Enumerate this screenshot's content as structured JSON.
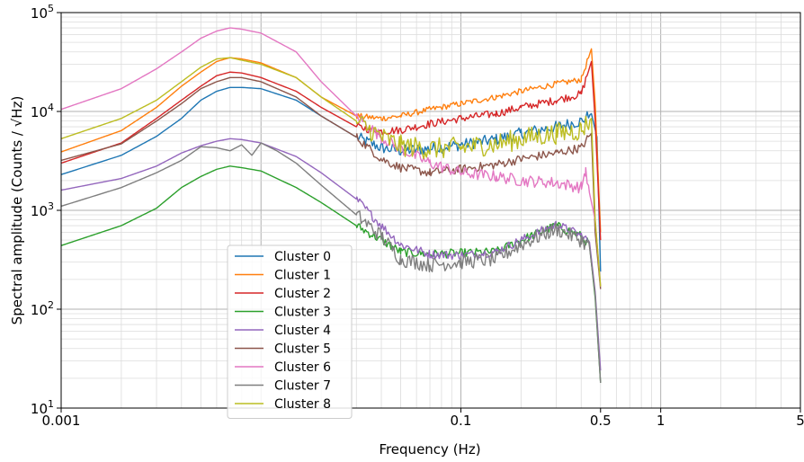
{
  "chart_data": {
    "type": "line",
    "title": "",
    "xlabel": "Frequency (Hz)",
    "ylabel": "Spectral amplitude (Counts / √Hz)",
    "xscale": "log",
    "yscale": "log",
    "xlim": [
      0.001,
      5
    ],
    "ylim": [
      10,
      100000
    ],
    "grid": true,
    "legend_position": "lower-left",
    "x_ticks": [
      {
        "value": 0.001,
        "label": "0.001"
      },
      {
        "value": 0.1,
        "label": "0.1"
      },
      {
        "value": 0.5,
        "label": "0.5"
      },
      {
        "value": 1,
        "label": "1"
      },
      {
        "value": 5,
        "label": "5"
      }
    ],
    "y_ticks": [
      {
        "value": 10,
        "label": "10",
        "exp": "1"
      },
      {
        "value": 100,
        "label": "10",
        "exp": "2"
      },
      {
        "value": 1000,
        "label": "10",
        "exp": "3"
      },
      {
        "value": 10000,
        "label": "10",
        "exp": "4"
      },
      {
        "value": 100000,
        "label": "10",
        "exp": "5"
      }
    ],
    "series": [
      {
        "name": "Cluster 0",
        "color": "#1f77b4",
        "noise": 0.12,
        "points": [
          [
            0.001,
            2300
          ],
          [
            0.002,
            3600
          ],
          [
            0.003,
            5600
          ],
          [
            0.004,
            8500
          ],
          [
            0.005,
            13000
          ],
          [
            0.006,
            16000
          ],
          [
            0.007,
            17500
          ],
          [
            0.008,
            17500
          ],
          [
            0.01,
            17000
          ],
          [
            0.015,
            13000
          ],
          [
            0.02,
            9000
          ],
          [
            0.03,
            5500
          ],
          [
            0.04,
            4300
          ],
          [
            0.05,
            4000
          ],
          [
            0.07,
            4200
          ],
          [
            0.1,
            4600
          ],
          [
            0.15,
            5200
          ],
          [
            0.2,
            6000
          ],
          [
            0.3,
            7000
          ],
          [
            0.4,
            8000
          ],
          [
            0.45,
            9500
          ],
          [
            0.48,
            5500
          ],
          [
            0.5,
            240
          ]
        ]
      },
      {
        "name": "Cluster 1",
        "color": "#ff7f0e",
        "noise": 0.06,
        "points": [
          [
            0.001,
            3900
          ],
          [
            0.002,
            6400
          ],
          [
            0.003,
            11000
          ],
          [
            0.004,
            18000
          ],
          [
            0.005,
            25000
          ],
          [
            0.006,
            32000
          ],
          [
            0.007,
            35000
          ],
          [
            0.008,
            34000
          ],
          [
            0.01,
            31000
          ],
          [
            0.015,
            22000
          ],
          [
            0.02,
            14000
          ],
          [
            0.03,
            9000
          ],
          [
            0.04,
            8500
          ],
          [
            0.05,
            9000
          ],
          [
            0.07,
            10500
          ],
          [
            0.1,
            12000
          ],
          [
            0.15,
            14000
          ],
          [
            0.2,
            16000
          ],
          [
            0.3,
            19000
          ],
          [
            0.4,
            21000
          ],
          [
            0.45,
            43000
          ],
          [
            0.47,
            12000
          ],
          [
            0.5,
            600
          ]
        ]
      },
      {
        "name": "Cluster 2",
        "color": "#d62728",
        "noise": 0.08,
        "points": [
          [
            0.001,
            3000
          ],
          [
            0.002,
            4800
          ],
          [
            0.003,
            8500
          ],
          [
            0.004,
            13000
          ],
          [
            0.005,
            18000
          ],
          [
            0.006,
            23000
          ],
          [
            0.007,
            25000
          ],
          [
            0.008,
            24500
          ],
          [
            0.01,
            22000
          ],
          [
            0.015,
            16000
          ],
          [
            0.02,
            11000
          ],
          [
            0.03,
            7000
          ],
          [
            0.04,
            6300
          ],
          [
            0.05,
            6500
          ],
          [
            0.07,
            7500
          ],
          [
            0.1,
            8500
          ],
          [
            0.15,
            9500
          ],
          [
            0.2,
            11000
          ],
          [
            0.3,
            13000
          ],
          [
            0.4,
            15000
          ],
          [
            0.45,
            32000
          ],
          [
            0.47,
            8000
          ],
          [
            0.5,
            500
          ]
        ]
      },
      {
        "name": "Cluster 3",
        "color": "#2ca02c",
        "noise": 0.09,
        "points": [
          [
            0.001,
            440
          ],
          [
            0.002,
            700
          ],
          [
            0.003,
            1050
          ],
          [
            0.004,
            1700
          ],
          [
            0.005,
            2200
          ],
          [
            0.006,
            2600
          ],
          [
            0.007,
            2800
          ],
          [
            0.008,
            2700
          ],
          [
            0.01,
            2500
          ],
          [
            0.015,
            1700
          ],
          [
            0.02,
            1200
          ],
          [
            0.03,
            700
          ],
          [
            0.04,
            500
          ],
          [
            0.05,
            380
          ],
          [
            0.07,
            360
          ],
          [
            0.1,
            370
          ],
          [
            0.15,
            380
          ],
          [
            0.2,
            500
          ],
          [
            0.3,
            700
          ],
          [
            0.4,
            550
          ],
          [
            0.44,
            450
          ],
          [
            0.47,
            130
          ],
          [
            0.5,
            18
          ]
        ]
      },
      {
        "name": "Cluster 4",
        "color": "#9467bd",
        "noise": 0.09,
        "points": [
          [
            0.001,
            1600
          ],
          [
            0.002,
            2100
          ],
          [
            0.003,
            2800
          ],
          [
            0.004,
            3800
          ],
          [
            0.005,
            4500
          ],
          [
            0.006,
            5000
          ],
          [
            0.007,
            5300
          ],
          [
            0.008,
            5200
          ],
          [
            0.01,
            4800
          ],
          [
            0.015,
            3500
          ],
          [
            0.02,
            2400
          ],
          [
            0.03,
            1300
          ],
          [
            0.04,
            700
          ],
          [
            0.05,
            450
          ],
          [
            0.07,
            360
          ],
          [
            0.1,
            350
          ],
          [
            0.15,
            380
          ],
          [
            0.2,
            500
          ],
          [
            0.3,
            720
          ],
          [
            0.4,
            560
          ],
          [
            0.44,
            480
          ],
          [
            0.47,
            150
          ],
          [
            0.5,
            24
          ]
        ]
      },
      {
        "name": "Cluster 5",
        "color": "#8c564b",
        "noise": 0.09,
        "points": [
          [
            0.001,
            3200
          ],
          [
            0.002,
            4700
          ],
          [
            0.003,
            8000
          ],
          [
            0.004,
            12000
          ],
          [
            0.005,
            17000
          ],
          [
            0.006,
            20000
          ],
          [
            0.007,
            22000
          ],
          [
            0.008,
            22000
          ],
          [
            0.01,
            20000
          ],
          [
            0.015,
            14000
          ],
          [
            0.02,
            9000
          ],
          [
            0.03,
            5500
          ],
          [
            0.04,
            3300
          ],
          [
            0.05,
            2700
          ],
          [
            0.07,
            2400
          ],
          [
            0.1,
            2600
          ],
          [
            0.15,
            2900
          ],
          [
            0.2,
            3300
          ],
          [
            0.3,
            3800
          ],
          [
            0.4,
            4300
          ],
          [
            0.45,
            6000
          ],
          [
            0.47,
            600
          ],
          [
            0.5,
            160
          ]
        ]
      },
      {
        "name": "Cluster 6",
        "color": "#e377c2",
        "noise": 0.12,
        "points": [
          [
            0.001,
            10500
          ],
          [
            0.002,
            17000
          ],
          [
            0.003,
            27000
          ],
          [
            0.004,
            40000
          ],
          [
            0.005,
            55000
          ],
          [
            0.006,
            65000
          ],
          [
            0.007,
            70000
          ],
          [
            0.008,
            68000
          ],
          [
            0.01,
            62000
          ],
          [
            0.015,
            40000
          ],
          [
            0.02,
            20000
          ],
          [
            0.03,
            9000
          ],
          [
            0.04,
            5500
          ],
          [
            0.05,
            4200
          ],
          [
            0.07,
            3000
          ],
          [
            0.1,
            2400
          ],
          [
            0.15,
            2200
          ],
          [
            0.2,
            2000
          ],
          [
            0.3,
            1900
          ],
          [
            0.4,
            1700
          ],
          [
            0.42,
            2500
          ],
          [
            0.44,
            1500
          ],
          [
            0.47,
            800
          ],
          [
            0.5,
            170
          ]
        ]
      },
      {
        "name": "Cluster 7",
        "color": "#7f7f7f",
        "noise": 0.15,
        "points": [
          [
            0.001,
            1100
          ],
          [
            0.002,
            1700
          ],
          [
            0.003,
            2400
          ],
          [
            0.004,
            3200
          ],
          [
            0.005,
            4400
          ],
          [
            0.006,
            4300
          ],
          [
            0.007,
            4000
          ],
          [
            0.008,
            4600
          ],
          [
            0.009,
            3600
          ],
          [
            0.01,
            4800
          ],
          [
            0.012,
            4000
          ],
          [
            0.015,
            3000
          ],
          [
            0.02,
            1800
          ],
          [
            0.03,
            900
          ],
          [
            0.04,
            550
          ],
          [
            0.05,
            320
          ],
          [
            0.07,
            280
          ],
          [
            0.1,
            300
          ],
          [
            0.15,
            320
          ],
          [
            0.2,
            450
          ],
          [
            0.3,
            650
          ],
          [
            0.4,
            500
          ],
          [
            0.44,
            430
          ],
          [
            0.47,
            140
          ],
          [
            0.5,
            18
          ]
        ]
      },
      {
        "name": "Cluster 8",
        "color": "#bcbd22",
        "noise": 0.22,
        "points": [
          [
            0.001,
            5300
          ],
          [
            0.002,
            8500
          ],
          [
            0.003,
            13000
          ],
          [
            0.004,
            20000
          ],
          [
            0.005,
            28000
          ],
          [
            0.006,
            34000
          ],
          [
            0.007,
            35000
          ],
          [
            0.008,
            33000
          ],
          [
            0.01,
            30000
          ],
          [
            0.015,
            22000
          ],
          [
            0.02,
            14000
          ],
          [
            0.03,
            8000
          ],
          [
            0.04,
            5500
          ],
          [
            0.05,
            4500
          ],
          [
            0.07,
            4200
          ],
          [
            0.1,
            4300
          ],
          [
            0.15,
            4700
          ],
          [
            0.2,
            5300
          ],
          [
            0.3,
            6000
          ],
          [
            0.4,
            6500
          ],
          [
            0.45,
            8500
          ],
          [
            0.47,
            800
          ],
          [
            0.5,
            170
          ]
        ]
      }
    ]
  }
}
